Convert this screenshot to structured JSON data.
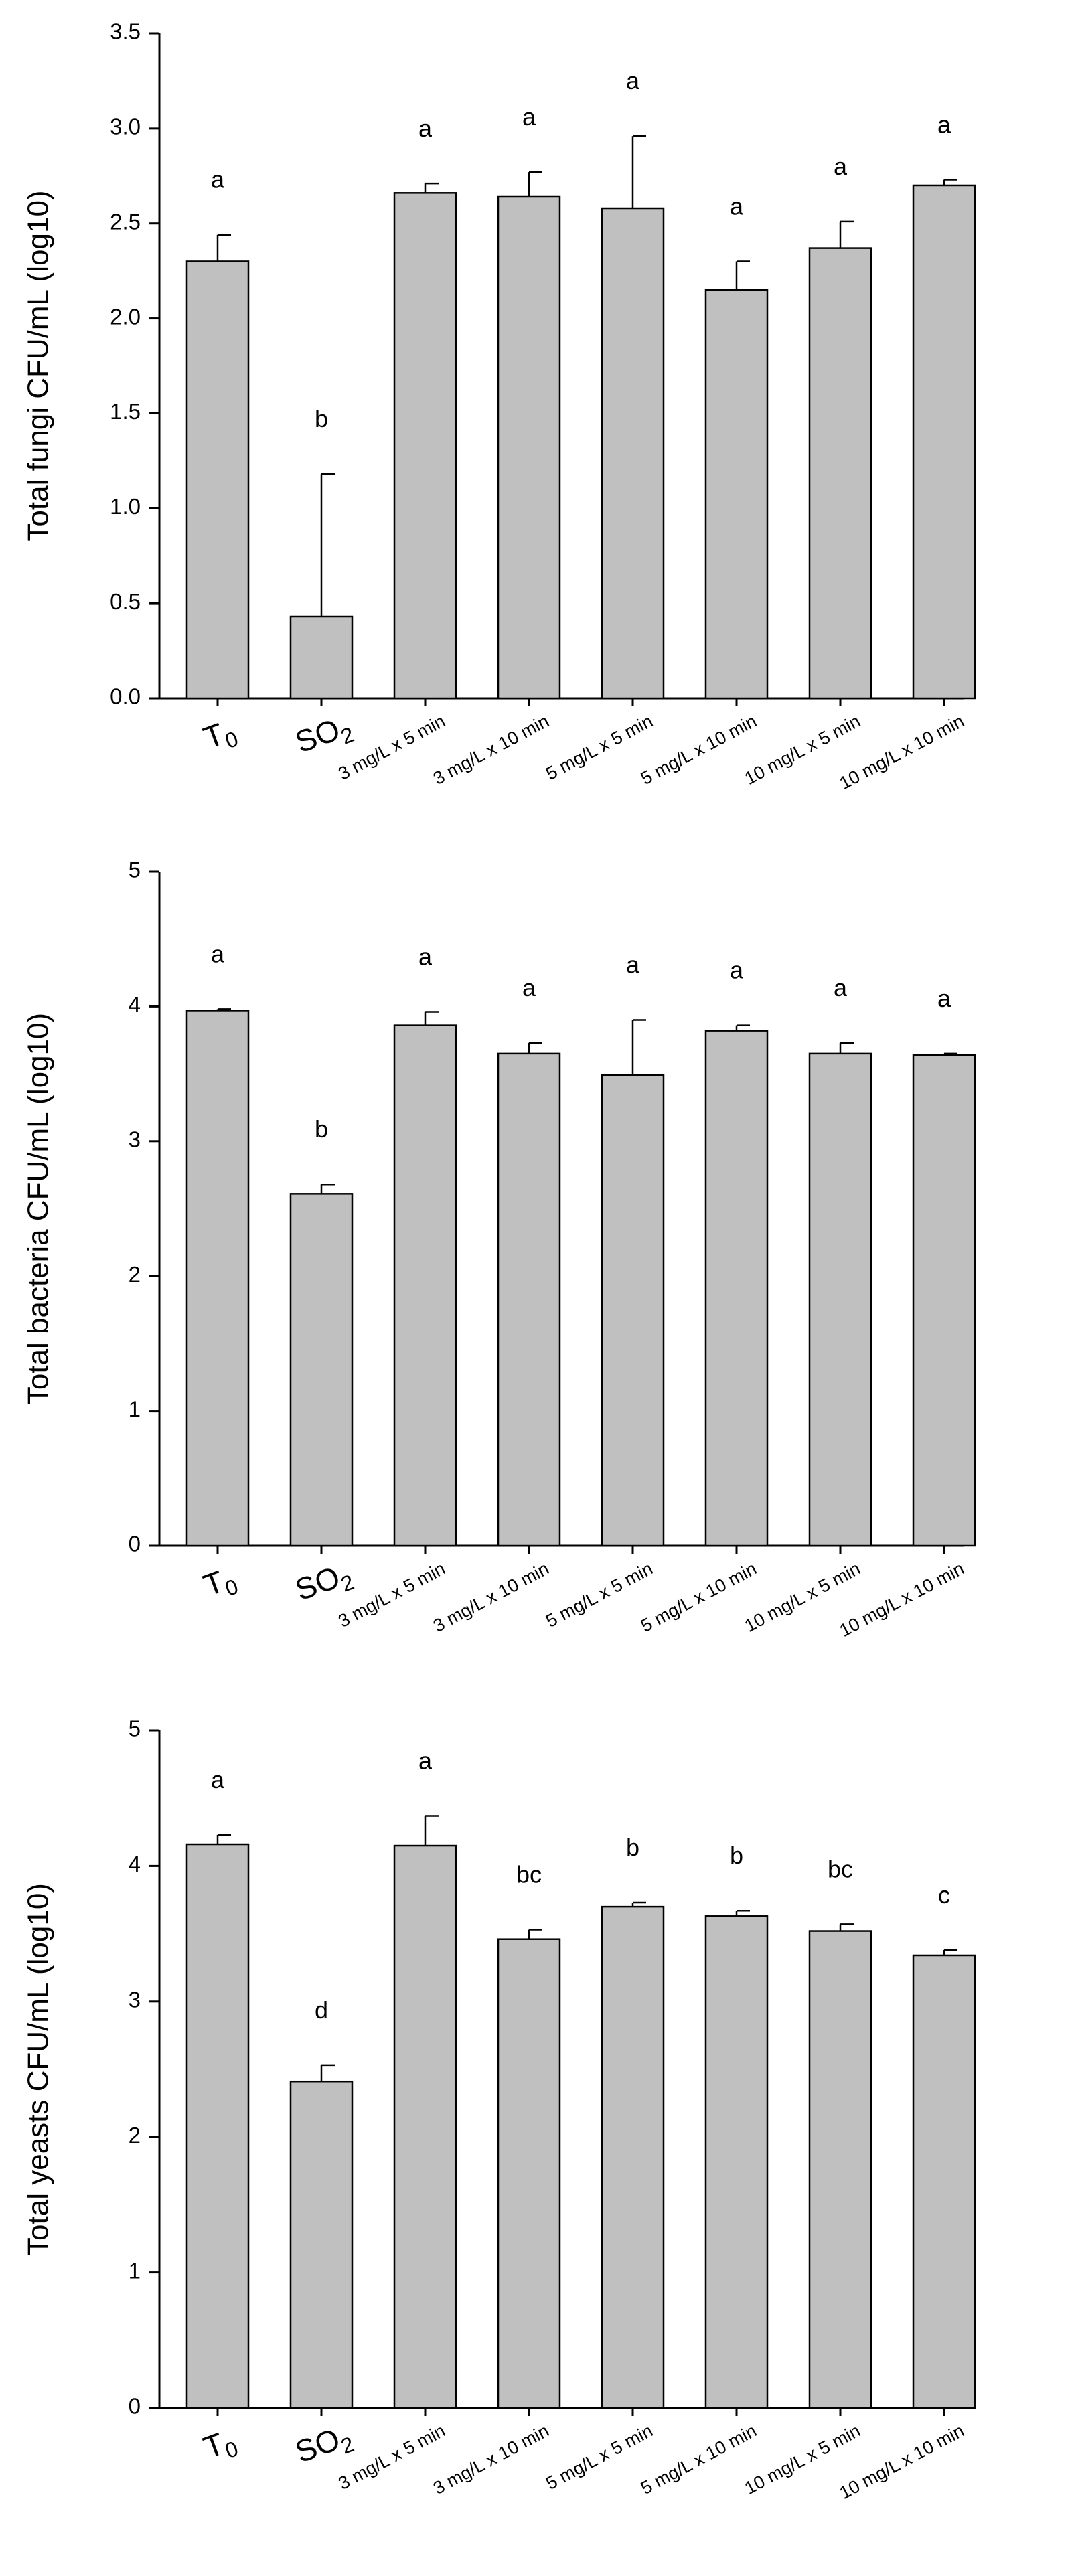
{
  "chart_data": [
    {
      "type": "bar",
      "ylabel": "Total fungi CFU/mL (log10)",
      "ylim": [
        0,
        3.5
      ],
      "yticks": [
        "0.0",
        "0.5",
        "1.0",
        "1.5",
        "2.0",
        "2.5",
        "3.0",
        "3.5"
      ],
      "categories": [
        {
          "main": "T",
          "sub": "0"
        },
        {
          "main": "SO",
          "sub": "2"
        },
        {
          "main": "3 mg/L x 5 min",
          "sub": ""
        },
        {
          "main": "3 mg/L x 10 min",
          "sub": ""
        },
        {
          "main": "5 mg/L x 5 min",
          "sub": ""
        },
        {
          "main": "5 mg/L x 10 min",
          "sub": ""
        },
        {
          "main": "10 mg/L x 5 min",
          "sub": ""
        },
        {
          "main": "10 mg/L x 10 min",
          "sub": ""
        }
      ],
      "values": [
        2.3,
        0.43,
        2.66,
        2.64,
        2.58,
        2.15,
        2.37,
        2.7
      ],
      "errors": [
        0.14,
        0.75,
        0.05,
        0.13,
        0.38,
        0.15,
        0.14,
        0.03
      ],
      "letters": [
        "a",
        "b",
        "a",
        "a",
        "a",
        "a",
        "a",
        "a"
      ],
      "bar_color": "#c0c0c0",
      "grid": false
    },
    {
      "type": "bar",
      "ylabel": "Total bacteria CFU/mL (log10)",
      "ylim": [
        0,
        5
      ],
      "yticks": [
        "0",
        "1",
        "2",
        "3",
        "4",
        "5"
      ],
      "categories": [
        {
          "main": "T",
          "sub": "0"
        },
        {
          "main": "SO",
          "sub": "2"
        },
        {
          "main": "3 mg/L x 5 min",
          "sub": ""
        },
        {
          "main": "3 mg/L x 10 min",
          "sub": ""
        },
        {
          "main": "5 mg/L x 5 min",
          "sub": ""
        },
        {
          "main": "5 mg/L x 10 min",
          "sub": ""
        },
        {
          "main": "10 mg/L x 5 min",
          "sub": ""
        },
        {
          "main": "10 mg/L x 10 min",
          "sub": ""
        }
      ],
      "values": [
        3.97,
        2.61,
        3.86,
        3.65,
        3.49,
        3.82,
        3.65,
        3.64
      ],
      "errors": [
        0.01,
        0.07,
        0.1,
        0.08,
        0.41,
        0.04,
        0.08,
        0.01
      ],
      "letters": [
        "a",
        "b",
        "a",
        "a",
        "a",
        "a",
        "a",
        "a"
      ],
      "bar_color": "#c0c0c0",
      "grid": false
    },
    {
      "type": "bar",
      "ylabel": "Total yeasts CFU/mL (log10)",
      "ylim": [
        0,
        5
      ],
      "yticks": [
        "0",
        "1",
        "2",
        "3",
        "4",
        "5"
      ],
      "categories": [
        {
          "main": "T",
          "sub": "0"
        },
        {
          "main": "SO",
          "sub": "2"
        },
        {
          "main": "3 mg/L x 5 min",
          "sub": ""
        },
        {
          "main": "3 mg/L x 10 min",
          "sub": ""
        },
        {
          "main": "5 mg/L x 5 min",
          "sub": ""
        },
        {
          "main": "5 mg/L x 10 min",
          "sub": ""
        },
        {
          "main": "10 mg/L x 5 min",
          "sub": ""
        },
        {
          "main": "10 mg/L x 10 min",
          "sub": ""
        }
      ],
      "values": [
        4.16,
        2.41,
        4.15,
        3.46,
        3.7,
        3.63,
        3.52,
        3.34
      ],
      "errors": [
        0.07,
        0.12,
        0.22,
        0.07,
        0.03,
        0.04,
        0.05,
        0.04
      ],
      "letters": [
        "a",
        "d",
        "a",
        "bc",
        "b",
        "b",
        "bc",
        "c"
      ],
      "bar_color": "#c0c0c0",
      "grid": false
    }
  ]
}
